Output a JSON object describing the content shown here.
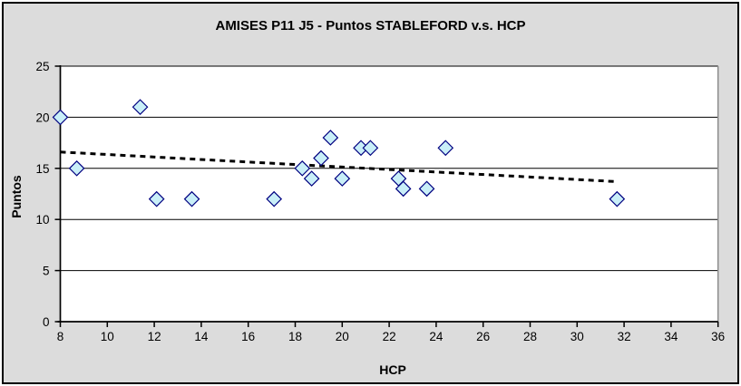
{
  "chart_data": {
    "type": "scatter",
    "title": "AMISES P11 J5 - Puntos STABLEFORD v.s. HCP",
    "xlabel": "HCP",
    "ylabel": "Puntos",
    "xlim": [
      8,
      36
    ],
    "ylim": [
      0,
      25
    ],
    "x_ticks": [
      8,
      10,
      12,
      14,
      16,
      18,
      20,
      22,
      24,
      26,
      28,
      30,
      32,
      34,
      36
    ],
    "y_ticks": [
      0,
      5,
      10,
      15,
      20,
      25
    ],
    "grid": "horizontal",
    "legend": "none",
    "series": [
      {
        "name": "Puntos STABLEFORD",
        "marker": "diamond",
        "points": [
          [
            8,
            20
          ],
          [
            8.7,
            15
          ],
          [
            11.4,
            21
          ],
          [
            12.1,
            12
          ],
          [
            13.6,
            12
          ],
          [
            17.1,
            12
          ],
          [
            18.3,
            15
          ],
          [
            18.7,
            14
          ],
          [
            19.1,
            16
          ],
          [
            19.5,
            18
          ],
          [
            20,
            14
          ],
          [
            20.8,
            17
          ],
          [
            21.2,
            17
          ],
          [
            22.4,
            14
          ],
          [
            22.6,
            13
          ],
          [
            23.6,
            13
          ],
          [
            24.4,
            17
          ],
          [
            31.7,
            12
          ]
        ]
      }
    ],
    "trendline": {
      "type": "linear",
      "style": "dashed",
      "x_start": 8,
      "y_start": 16.6,
      "x_end": 31.7,
      "y_end": 13.7
    },
    "colors": {
      "background": "#DCDCDC",
      "plot_background": "#FFFFFF",
      "gridline": "#000000",
      "axis": "#000000",
      "plot_right_border": "#8C8C8C",
      "marker_fill": "#C9EFF8",
      "marker_border": "#000080",
      "trendline": "#000000"
    }
  }
}
